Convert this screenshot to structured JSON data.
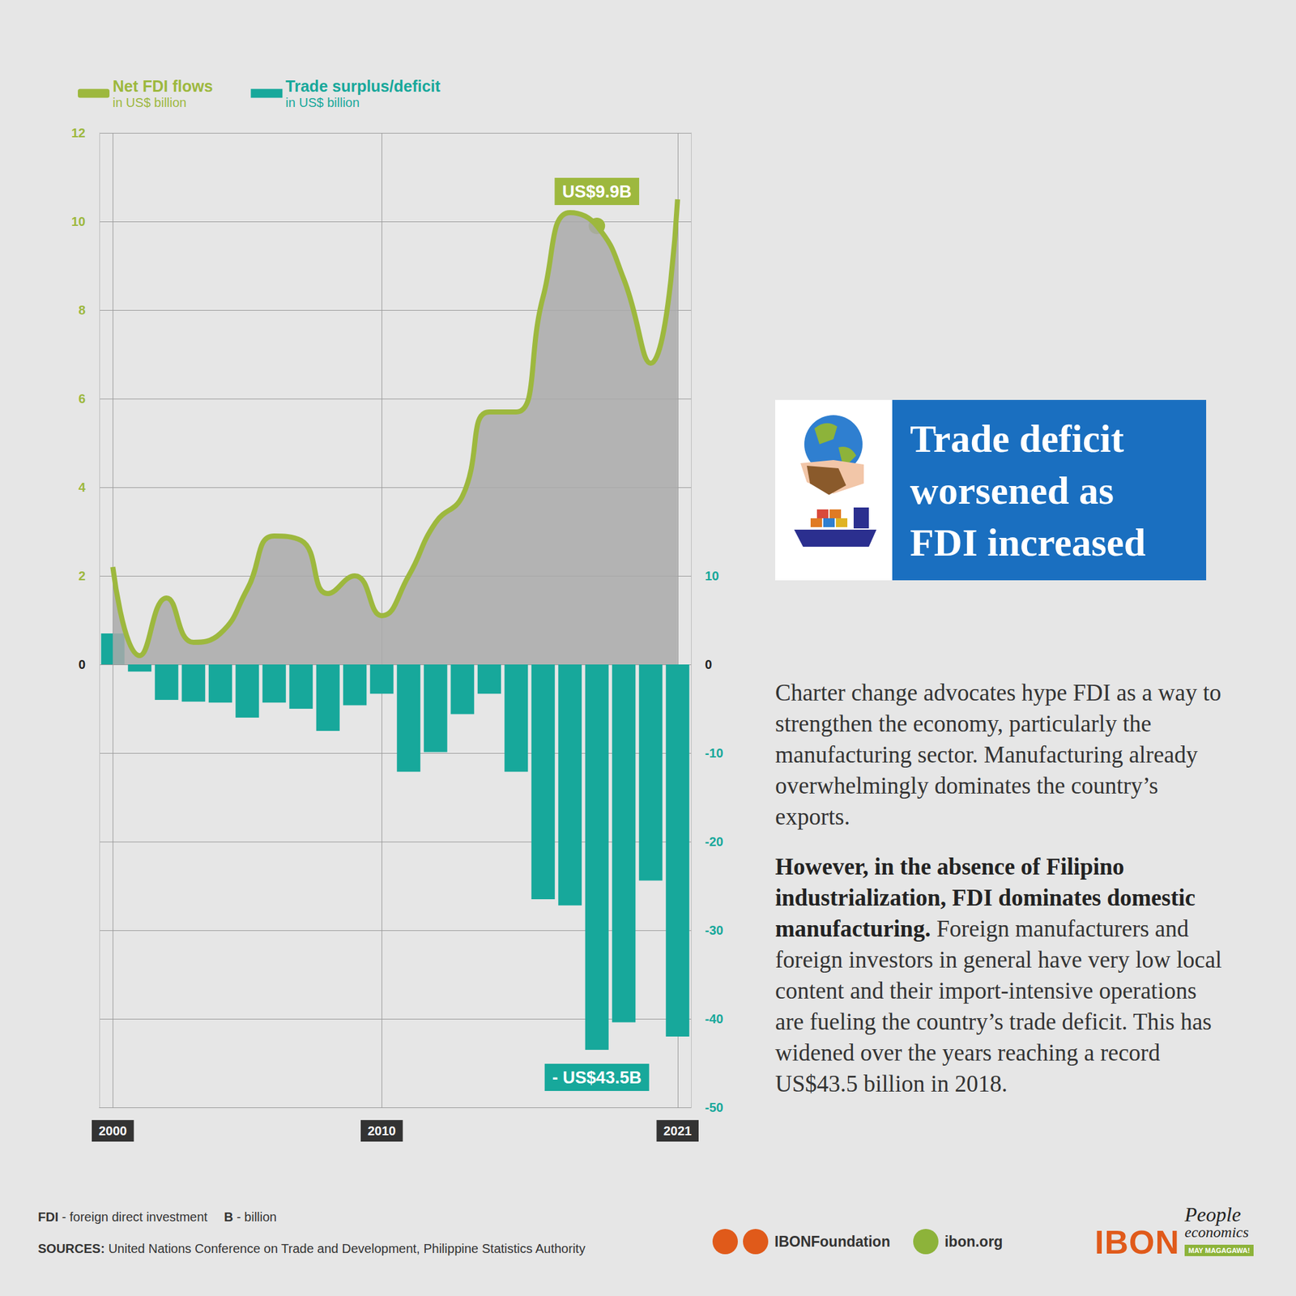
{
  "chart_data": {
    "type": "combo",
    "x": [
      2000,
      2001,
      2002,
      2003,
      2004,
      2005,
      2006,
      2007,
      2008,
      2009,
      2010,
      2011,
      2012,
      2013,
      2014,
      2015,
      2016,
      2017,
      2018,
      2019,
      2020,
      2021
    ],
    "xlim": [
      1999.5,
      2021.5
    ],
    "xticks": [
      2000,
      2010,
      2021
    ],
    "ylim": [
      -10,
      12
    ],
    "yticks": [
      0,
      2,
      4,
      6,
      8,
      10,
      12
    ],
    "y2lim": [
      -50,
      60
    ],
    "y2ticks": [
      -50,
      -40,
      -30,
      -20,
      -10,
      0,
      10
    ],
    "grid": true,
    "legend": "top-left",
    "series": [
      {
        "name": "Net FDI flows",
        "unit": "in US$ billion",
        "type": "line",
        "color": "#9db83e",
        "values": [
          2.2,
          0.2,
          1.5,
          0.5,
          0.7,
          1.7,
          2.9,
          2.8,
          1.6,
          2.0,
          1.1,
          2.0,
          3.2,
          3.8,
          5.7,
          5.7,
          8.3,
          10.2,
          9.9,
          8.7,
          6.8,
          10.5
        ]
      },
      {
        "name": "Trade surplus/deficit",
        "unit": "in US$ billion",
        "type": "bar",
        "axis": "y2",
        "color": "#17a89b",
        "values": [
          3.5,
          -0.8,
          -4.0,
          -4.2,
          -4.3,
          -6.0,
          -4.3,
          -5.0,
          -7.5,
          -4.6,
          -3.3,
          -12.1,
          -9.9,
          -5.6,
          -3.3,
          -12.1,
          -26.5,
          -27.2,
          -43.5,
          -40.4,
          -24.4,
          -42.0
        ]
      }
    ],
    "annotations": [
      {
        "text": "US$9.9B",
        "series": "Net FDI flows",
        "x": 2018,
        "y": 9.9
      },
      {
        "text": "- US$43.5B",
        "series": "Trade surplus/deficit",
        "x": 2018,
        "y": -43.5
      }
    ]
  },
  "panel": {
    "title": "Trade deficit worsened as FDI increased",
    "paragraphs": [
      {
        "text": "Charter change advocates hype FDI as a way to strengthen the economy, particularly the manufacturing sector. Manufacturing already overwhelmingly dominates the country’s exports."
      },
      {
        "bold": "However, in the absence of Filipino industrialization, FDI dominates domestic manufacturing.",
        "text": " Foreign manufacturers and foreign investors in general have very low local content and their import-intensive operations are fueling the country’s trade deficit. This has widened over the years reaching a record US$43.5 billion in 2018."
      }
    ]
  },
  "footer": {
    "notes": [
      {
        "term": "FDI",
        "text": " - foreign direct investment"
      },
      {
        "term": "B",
        "text": " - billion"
      }
    ],
    "sources_label": "SOURCES:",
    "sources": "United Nations Conference on Trade and Development, Philippine Statistics Authority",
    "social": "IBONFoundation",
    "website": "ibon.org",
    "logo": "IBON",
    "brand": [
      "People",
      "economics"
    ],
    "tagline": "MAY MAGAGAWA!"
  }
}
